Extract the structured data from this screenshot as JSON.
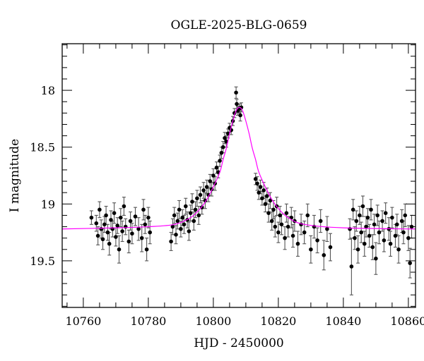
{
  "chart_data": {
    "type": "scatter",
    "title": "OGLE-2025-BLG-0659",
    "xlabel": "HJD - 2450000",
    "ylabel": "I magnitude",
    "xlim": [
      10753.5,
      10862.2
    ],
    "ylim": [
      19.91,
      17.59
    ],
    "y_inverted": true,
    "x_ticks": [
      10760,
      10780,
      10800,
      10820,
      10840,
      10860
    ],
    "x_tick_labels": [
      "10760",
      "10780",
      "10800",
      "10820",
      "10840",
      "10860"
    ],
    "y_ticks": [
      18,
      18.5,
      19,
      19.5
    ],
    "y_tick_labels": [
      "18",
      "18.5",
      "19",
      "19.5"
    ],
    "x_minor_step": 5,
    "y_minor_step": 0.1,
    "grid": false,
    "colors": {
      "data": "#000000",
      "errorbar": "#555555",
      "model": "#ff00ff"
    },
    "series": [
      {
        "kind": "data-with-errorbars",
        "points": [
          [
            10762.5,
            19.12,
            0.06
          ],
          [
            10764.0,
            19.17,
            0.07
          ],
          [
            10764.5,
            19.28,
            0.08
          ],
          [
            10765.0,
            19.05,
            0.07
          ],
          [
            10765.5,
            19.22,
            0.08
          ],
          [
            10766.0,
            19.31,
            0.09
          ],
          [
            10766.5,
            19.18,
            0.07
          ],
          [
            10767.0,
            19.1,
            0.08
          ],
          [
            10767.5,
            19.25,
            0.07
          ],
          [
            10768.0,
            19.35,
            0.1
          ],
          [
            10768.5,
            19.14,
            0.08
          ],
          [
            10769.0,
            19.22,
            0.07
          ],
          [
            10769.5,
            19.08,
            0.09
          ],
          [
            10770.0,
            19.29,
            0.08
          ],
          [
            10770.5,
            19.19,
            0.07
          ],
          [
            10771.0,
            19.4,
            0.12
          ],
          [
            10771.5,
            19.12,
            0.08
          ],
          [
            10772.0,
            19.24,
            0.09
          ],
          [
            10772.5,
            19.02,
            0.08
          ],
          [
            10773.0,
            19.2,
            0.07
          ],
          [
            10774.0,
            19.33,
            0.1
          ],
          [
            10774.5,
            19.15,
            0.08
          ],
          [
            10775.0,
            19.26,
            0.09
          ],
          [
            10776.0,
            19.11,
            0.08
          ],
          [
            10777.0,
            19.22,
            0.1
          ],
          [
            10778.0,
            19.3,
            0.12
          ],
          [
            10778.5,
            19.05,
            0.09
          ],
          [
            10779.0,
            19.18,
            0.08
          ],
          [
            10779.5,
            19.4,
            0.1
          ],
          [
            10780.0,
            19.12,
            0.09
          ],
          [
            10780.5,
            19.25,
            0.1
          ],
          [
            10787.0,
            19.33,
            0.08
          ],
          [
            10787.5,
            19.2,
            0.07
          ],
          [
            10788.0,
            19.1,
            0.07
          ],
          [
            10788.5,
            19.27,
            0.08
          ],
          [
            10789.0,
            19.15,
            0.07
          ],
          [
            10789.5,
            19.05,
            0.08
          ],
          [
            10790.0,
            19.22,
            0.07
          ],
          [
            10790.5,
            19.12,
            0.07
          ],
          [
            10791.0,
            19.18,
            0.08
          ],
          [
            10791.5,
            19.02,
            0.07
          ],
          [
            10792.0,
            19.14,
            0.07
          ],
          [
            10792.5,
            19.24,
            0.08
          ],
          [
            10793.0,
            19.08,
            0.07
          ],
          [
            10793.5,
            18.98,
            0.07
          ],
          [
            10794.0,
            19.15,
            0.08
          ],
          [
            10794.5,
            19.05,
            0.07
          ],
          [
            10795.0,
            18.95,
            0.07
          ],
          [
            10795.5,
            19.1,
            0.08
          ],
          [
            10796.0,
            18.92,
            0.07
          ],
          [
            10796.5,
            19.03,
            0.06
          ],
          [
            10797.0,
            18.88,
            0.07
          ],
          [
            10797.5,
            18.97,
            0.07
          ],
          [
            10798.0,
            18.85,
            0.06
          ],
          [
            10798.5,
            18.92,
            0.06
          ],
          [
            10799.0,
            18.8,
            0.06
          ],
          [
            10799.5,
            18.87,
            0.06
          ],
          [
            10800.0,
            18.75,
            0.06
          ],
          [
            10800.5,
            18.82,
            0.06
          ],
          [
            10801.0,
            18.68,
            0.05
          ],
          [
            10801.5,
            18.72,
            0.05
          ],
          [
            10802.0,
            18.62,
            0.05
          ],
          [
            10802.5,
            18.55,
            0.05
          ],
          [
            10803.0,
            18.5,
            0.05
          ],
          [
            10803.5,
            18.42,
            0.05
          ],
          [
            10804.0,
            18.45,
            0.05
          ],
          [
            10804.5,
            18.38,
            0.04
          ],
          [
            10805.0,
            18.33,
            0.04
          ],
          [
            10805.5,
            18.35,
            0.04
          ],
          [
            10806.0,
            18.27,
            0.04
          ],
          [
            10806.5,
            18.2,
            0.04
          ],
          [
            10807.0,
            18.02,
            0.05
          ],
          [
            10807.2,
            18.12,
            0.04
          ],
          [
            10807.5,
            18.18,
            0.04
          ],
          [
            10808.0,
            18.16,
            0.04
          ],
          [
            10808.3,
            18.22,
            0.05
          ],
          [
            10808.6,
            18.15,
            0.04
          ],
          [
            10813.0,
            18.78,
            0.05
          ],
          [
            10813.5,
            18.82,
            0.06
          ],
          [
            10814.0,
            18.9,
            0.06
          ],
          [
            10814.5,
            18.85,
            0.06
          ],
          [
            10815.0,
            18.95,
            0.06
          ],
          [
            10815.5,
            18.88,
            0.07
          ],
          [
            10816.0,
            19.0,
            0.07
          ],
          [
            10816.5,
            18.93,
            0.07
          ],
          [
            10817.0,
            19.08,
            0.08
          ],
          [
            10817.5,
            18.97,
            0.07
          ],
          [
            10818.0,
            19.15,
            0.08
          ],
          [
            10818.5,
            19.05,
            0.08
          ],
          [
            10819.0,
            19.2,
            0.09
          ],
          [
            10819.5,
            19.02,
            0.08
          ],
          [
            10820.0,
            19.25,
            0.09
          ],
          [
            10820.5,
            19.1,
            0.08
          ],
          [
            10821.0,
            19.18,
            0.09
          ],
          [
            10822.0,
            19.3,
            0.1
          ],
          [
            10822.5,
            19.08,
            0.08
          ],
          [
            10823.0,
            19.2,
            0.09
          ],
          [
            10824.0,
            19.12,
            0.09
          ],
          [
            10824.5,
            19.28,
            0.1
          ],
          [
            10825.0,
            19.15,
            0.09
          ],
          [
            10826.0,
            19.35,
            0.11
          ],
          [
            10827.0,
            19.18,
            0.09
          ],
          [
            10828.0,
            19.25,
            0.1
          ],
          [
            10829.0,
            19.1,
            0.1
          ],
          [
            10830.0,
            19.4,
            0.12
          ],
          [
            10831.0,
            19.2,
            0.1
          ],
          [
            10832.0,
            19.32,
            0.11
          ],
          [
            10833.0,
            19.15,
            0.1
          ],
          [
            10834.0,
            19.45,
            0.13
          ],
          [
            10835.0,
            19.22,
            0.11
          ],
          [
            10836.0,
            19.38,
            0.12
          ],
          [
            10842.0,
            19.22,
            0.09
          ],
          [
            10842.5,
            19.55,
            0.25
          ],
          [
            10843.0,
            19.05,
            0.09
          ],
          [
            10843.5,
            19.3,
            0.1
          ],
          [
            10844.0,
            19.15,
            0.09
          ],
          [
            10844.5,
            19.4,
            0.12
          ],
          [
            10845.0,
            19.1,
            0.08
          ],
          [
            10845.5,
            19.25,
            0.09
          ],
          [
            10846.0,
            19.02,
            0.09
          ],
          [
            10846.5,
            19.35,
            0.11
          ],
          [
            10847.0,
            19.2,
            0.09
          ],
          [
            10847.5,
            19.12,
            0.08
          ],
          [
            10848.0,
            19.28,
            0.1
          ],
          [
            10848.5,
            19.05,
            0.09
          ],
          [
            10849.0,
            19.38,
            0.11
          ],
          [
            10849.5,
            19.18,
            0.09
          ],
          [
            10850.0,
            19.48,
            0.14
          ],
          [
            10850.5,
            19.1,
            0.09
          ],
          [
            10851.0,
            19.25,
            0.1
          ],
          [
            10852.0,
            19.15,
            0.09
          ],
          [
            10852.5,
            19.32,
            0.1
          ],
          [
            10853.0,
            19.08,
            0.09
          ],
          [
            10854.0,
            19.22,
            0.1
          ],
          [
            10854.5,
            19.35,
            0.11
          ],
          [
            10855.0,
            19.12,
            0.09
          ],
          [
            10856.0,
            19.28,
            0.1
          ],
          [
            10856.5,
            19.18,
            0.09
          ],
          [
            10857.0,
            19.4,
            0.12
          ],
          [
            10858.0,
            19.15,
            0.1
          ],
          [
            10858.5,
            19.25,
            0.1
          ],
          [
            10859.0,
            19.1,
            0.1
          ],
          [
            10860.0,
            19.3,
            0.11
          ],
          [
            10860.5,
            19.52,
            0.13
          ],
          [
            10861.0,
            19.2,
            0.1
          ]
        ]
      },
      {
        "kind": "model-curve",
        "x": [
          10753.5,
          10770,
          10780,
          10788,
          10793,
          10796,
          10798,
          10800,
          10802,
          10803,
          10804,
          10805,
          10806,
          10807,
          10808,
          10809,
          10810,
          10811,
          10812,
          10813,
          10814,
          10816,
          10818,
          10820,
          10823,
          10828,
          10840,
          10862.2
        ],
        "y": [
          19.22,
          19.21,
          19.2,
          19.18,
          19.12,
          19.04,
          18.96,
          18.85,
          18.72,
          18.61,
          18.51,
          18.38,
          18.27,
          18.18,
          18.15,
          18.18,
          18.27,
          18.38,
          18.51,
          18.61,
          18.72,
          18.85,
          18.96,
          19.04,
          19.12,
          19.18,
          19.21,
          19.22
        ]
      }
    ]
  }
}
